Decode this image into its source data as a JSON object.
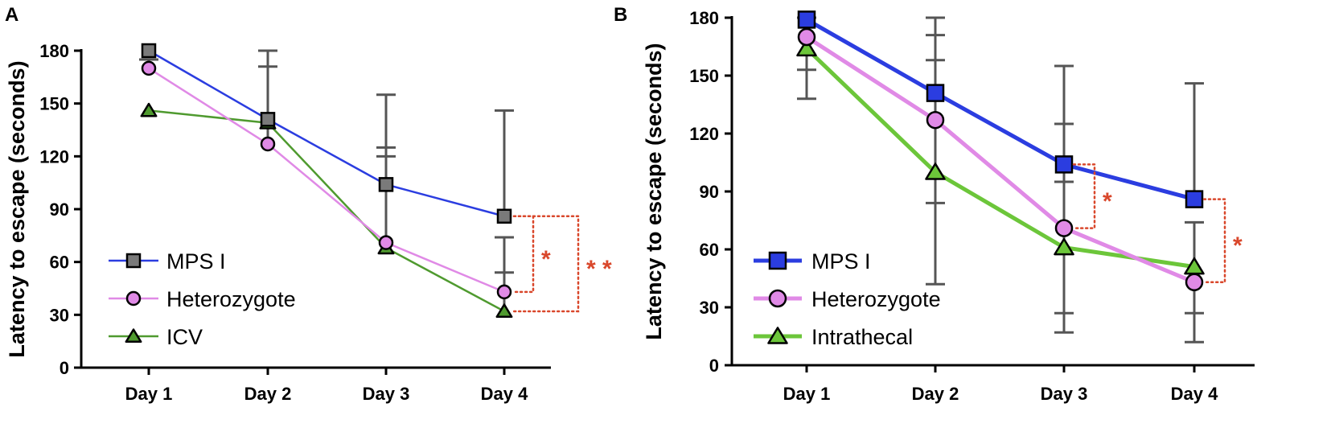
{
  "figure": {
    "panels": [
      "A",
      "B"
    ],
    "significance_marks": {
      "A": [
        "*",
        "* *"
      ],
      "B": [
        "*",
        "*"
      ]
    }
  },
  "colors": {
    "mps": "#2b3de0",
    "het": "#e08ae6",
    "icv": "#4f9a2f",
    "intrathecal": "#6cc63a",
    "error_bar": "#555555",
    "significance": "#d9472b",
    "marker_gray": "#7a7a7a"
  },
  "chart_data": [
    {
      "panel": "A",
      "type": "line",
      "categories": [
        "Day 1",
        "Day 2",
        "Day 3",
        "Day 4"
      ],
      "ylabel": "Latency to escape (seconds)",
      "xlabel": "",
      "ylim": [
        0,
        180
      ],
      "yticks": [
        0,
        30,
        60,
        90,
        120,
        150,
        180
      ],
      "legend_position": "bottom-left",
      "series": [
        {
          "name": "MPS I",
          "key": "mps",
          "marker": "square",
          "values": [
            180,
            141,
            104,
            86
          ],
          "err_upper": [
            180,
            180,
            155,
            146
          ],
          "err_lower": [
            180,
            141,
            104,
            86
          ]
        },
        {
          "name": "Heterozygote",
          "key": "het",
          "marker": "circle",
          "values": [
            170,
            127,
            71,
            43
          ],
          "err_upper": [
            175,
            171,
            125,
            74
          ],
          "err_lower": [
            170,
            127,
            71,
            43
          ]
        },
        {
          "name": "ICV",
          "key": "icv",
          "marker": "triangle",
          "values": [
            146,
            139,
            68,
            32
          ],
          "err_upper": [
            146,
            139,
            120,
            54
          ],
          "err_lower": [
            146,
            139,
            68,
            32
          ]
        }
      ],
      "significance": [
        {
          "category": "Day 4",
          "from": "MPS I",
          "to": "Heterozygote",
          "label": "*"
        },
        {
          "category": "Day 4",
          "from": "MPS I",
          "to": "ICV",
          "label": "* *"
        }
      ]
    },
    {
      "panel": "B",
      "type": "line",
      "categories": [
        "Day 1",
        "Day 2",
        "Day 3",
        "Day 4"
      ],
      "ylabel": "Latency to escape (seconds)",
      "xlabel": "",
      "ylim": [
        0,
        180
      ],
      "yticks": [
        0,
        30,
        60,
        90,
        120,
        150,
        180
      ],
      "legend_position": "bottom-left",
      "series": [
        {
          "name": "MPS I",
          "key": "mps",
          "marker": "square",
          "values": [
            179,
            141,
            104,
            86
          ],
          "err_upper": [
            180,
            180,
            155,
            146
          ],
          "err_lower": [
            179,
            141,
            104,
            86
          ]
        },
        {
          "name": "Heterozygote",
          "key": "het",
          "marker": "circle",
          "values": [
            170,
            127,
            71,
            43
          ],
          "err_upper": [
            170,
            171,
            125,
            74
          ],
          "err_lower": [
            153,
            84,
            17,
            12
          ]
        },
        {
          "name": "Intrathecal",
          "key": "intrathecal",
          "marker": "triangle",
          "values": [
            164,
            100,
            61,
            51
          ],
          "err_upper": [
            164,
            158,
            95,
            51
          ],
          "err_lower": [
            138,
            42,
            27,
            27
          ]
        }
      ],
      "significance": [
        {
          "category": "Day 3",
          "from": "MPS I",
          "to": "Heterozygote",
          "label": "*"
        },
        {
          "category": "Day 4",
          "from": "MPS I",
          "to": "Heterozygote",
          "label": "*"
        }
      ]
    }
  ]
}
